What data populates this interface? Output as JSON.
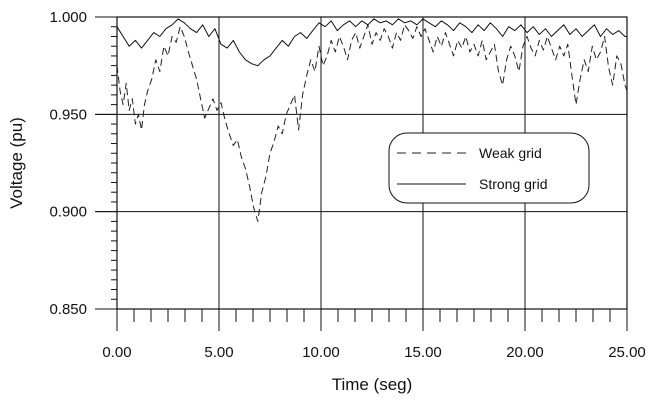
{
  "chart_data": {
    "type": "line",
    "title": "",
    "xlabel": "Time (seg)",
    "ylabel": "Voltage (pu)",
    "xlim": [
      0,
      25
    ],
    "ylim": [
      0.85,
      1.0
    ],
    "x_ticks": [
      0,
      5,
      10,
      15,
      20,
      25
    ],
    "x_tick_labels": [
      "0.00",
      "5.00",
      "10.00",
      "15.00",
      "20.00",
      "25.00"
    ],
    "y_ticks": [
      0.85,
      0.9,
      0.95,
      1.0
    ],
    "y_tick_labels": [
      "0.850",
      "0.900",
      "0.950",
      "1.000"
    ],
    "grid": true,
    "legend_position": "right-center",
    "series": [
      {
        "name": "Weak grid",
        "style": "dashed",
        "color": "#222222",
        "x": [
          0.0,
          0.15,
          0.3,
          0.45,
          0.6,
          0.75,
          0.9,
          1.05,
          1.2,
          1.35,
          1.5,
          1.7,
          1.9,
          2.1,
          2.3,
          2.5,
          2.7,
          2.9,
          3.1,
          3.3,
          3.5,
          3.7,
          3.9,
          4.1,
          4.3,
          4.5,
          4.7,
          4.9,
          5.1,
          5.3,
          5.5,
          5.7,
          5.9,
          6.1,
          6.3,
          6.5,
          6.7,
          6.9,
          7.1,
          7.3,
          7.5,
          7.7,
          7.9,
          8.1,
          8.3,
          8.5,
          8.7,
          8.9,
          9.1,
          9.3,
          9.5,
          9.7,
          9.9,
          10.1,
          10.3,
          10.5,
          10.7,
          10.9,
          11.1,
          11.3,
          11.5,
          11.7,
          11.9,
          12.1,
          12.3,
          12.5,
          12.7,
          12.9,
          13.1,
          13.3,
          13.5,
          13.7,
          13.9,
          14.1,
          14.3,
          14.5,
          14.7,
          14.9,
          15.1,
          15.3,
          15.5,
          15.7,
          15.9,
          16.1,
          16.3,
          16.5,
          16.7,
          16.9,
          17.1,
          17.3,
          17.5,
          17.7,
          17.9,
          18.1,
          18.3,
          18.5,
          18.7,
          18.9,
          19.1,
          19.3,
          19.5,
          19.7,
          19.9,
          20.1,
          20.3,
          20.5,
          20.7,
          20.9,
          21.1,
          21.3,
          21.5,
          21.7,
          21.9,
          22.1,
          22.3,
          22.5,
          22.7,
          22.9,
          23.1,
          23.3,
          23.5,
          23.7,
          23.9,
          24.1,
          24.3,
          24.5,
          24.7,
          24.9,
          25.0
        ],
        "y": [
          0.975,
          0.962,
          0.955,
          0.966,
          0.952,
          0.958,
          0.945,
          0.95,
          0.942,
          0.955,
          0.962,
          0.968,
          0.978,
          0.972,
          0.985,
          0.98,
          0.99,
          0.987,
          0.995,
          0.99,
          0.982,
          0.975,
          0.968,
          0.958,
          0.948,
          0.953,
          0.958,
          0.952,
          0.956,
          0.947,
          0.94,
          0.934,
          0.937,
          0.928,
          0.922,
          0.913,
          0.902,
          0.895,
          0.91,
          0.918,
          0.93,
          0.936,
          0.944,
          0.94,
          0.95,
          0.955,
          0.96,
          0.942,
          0.96,
          0.97,
          0.978,
          0.972,
          0.985,
          0.975,
          0.98,
          0.988,
          0.982,
          0.99,
          0.985,
          0.978,
          0.988,
          0.992,
          0.984,
          0.99,
          0.996,
          0.986,
          0.992,
          0.988,
          0.994,
          0.99,
          0.984,
          0.992,
          0.988,
          0.996,
          0.993,
          0.989,
          0.995,
          0.99,
          0.994,
          0.988,
          0.982,
          0.99,
          0.985,
          0.992,
          0.986,
          0.98,
          0.988,
          0.984,
          0.99,
          0.982,
          0.986,
          0.98,
          0.988,
          0.978,
          0.982,
          0.986,
          0.972,
          0.965,
          0.978,
          0.985,
          0.98,
          0.972,
          0.985,
          0.99,
          0.984,
          0.98,
          0.988,
          0.983,
          0.99,
          0.984,
          0.978,
          0.985,
          0.98,
          0.986,
          0.97,
          0.955,
          0.968,
          0.978,
          0.972,
          0.985,
          0.978,
          0.982,
          0.99,
          0.974,
          0.965,
          0.98,
          0.976,
          0.965,
          0.962
        ]
      },
      {
        "name": "Strong grid",
        "style": "solid",
        "color": "#111111",
        "x": [
          0.0,
          0.3,
          0.6,
          0.9,
          1.2,
          1.5,
          1.8,
          2.1,
          2.4,
          2.7,
          3.0,
          3.3,
          3.6,
          3.9,
          4.2,
          4.5,
          4.8,
          5.1,
          5.4,
          5.7,
          6.0,
          6.3,
          6.6,
          6.9,
          7.2,
          7.5,
          7.8,
          8.1,
          8.4,
          8.7,
          9.0,
          9.3,
          9.6,
          9.9,
          10.2,
          10.5,
          10.8,
          11.1,
          11.4,
          11.7,
          12.0,
          12.3,
          12.6,
          12.9,
          13.2,
          13.5,
          13.8,
          14.1,
          14.4,
          14.7,
          15.0,
          15.3,
          15.6,
          15.9,
          16.2,
          16.5,
          16.8,
          17.1,
          17.4,
          17.7,
          18.0,
          18.3,
          18.6,
          18.9,
          19.2,
          19.5,
          19.8,
          20.1,
          20.4,
          20.7,
          21.0,
          21.3,
          21.6,
          21.9,
          22.2,
          22.5,
          22.8,
          23.1,
          23.4,
          23.7,
          24.0,
          24.3,
          24.6,
          24.9,
          25.0
        ],
        "y": [
          0.995,
          0.99,
          0.985,
          0.988,
          0.984,
          0.988,
          0.992,
          0.99,
          0.994,
          0.996,
          0.999,
          0.997,
          0.994,
          0.992,
          0.996,
          0.99,
          0.994,
          0.986,
          0.984,
          0.988,
          0.982,
          0.978,
          0.976,
          0.975,
          0.978,
          0.98,
          0.984,
          0.988,
          0.985,
          0.99,
          0.992,
          0.989,
          0.993,
          0.997,
          0.995,
          0.998,
          0.993,
          0.996,
          0.998,
          0.995,
          0.998,
          0.996,
          0.999,
          0.997,
          0.998,
          0.996,
          0.999,
          0.997,
          0.998,
          0.996,
          0.999,
          0.997,
          0.995,
          0.998,
          0.996,
          0.993,
          0.997,
          0.995,
          0.992,
          0.996,
          0.993,
          0.997,
          0.994,
          0.99,
          0.995,
          0.993,
          0.996,
          0.992,
          0.995,
          0.991,
          0.994,
          0.99,
          0.993,
          0.996,
          0.991,
          0.994,
          0.99,
          0.993,
          0.996,
          0.99,
          0.994,
          0.991,
          0.993,
          0.99,
          0.99
        ]
      }
    ]
  }
}
